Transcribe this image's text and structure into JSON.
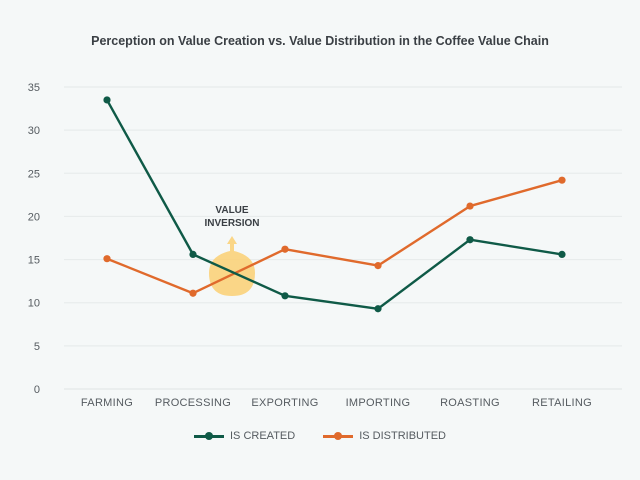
{
  "chart_data": {
    "type": "line",
    "title": "Perception on Value Creation vs. Value Distribution in the Coffee Value Chain",
    "xlabel": "",
    "ylabel": "",
    "categories": [
      "FARMING",
      "PROCESSING",
      "EXPORTING",
      "IMPORTING",
      "ROASTING",
      "RETAILING"
    ],
    "ylim": [
      0,
      35
    ],
    "yticks": [
      0,
      5,
      10,
      15,
      20,
      25,
      30,
      35
    ],
    "grid": true,
    "legend_position": "bottom",
    "series": [
      {
        "name": "IS CREATED",
        "color": "#0f5a47",
        "values": [
          33.5,
          15.6,
          10.8,
          9.3,
          17.3,
          15.6
        ]
      },
      {
        "name": "IS DISTRIBUTED",
        "color": "#e06a2c",
        "values": [
          15.1,
          11.1,
          16.2,
          14.3,
          21.2,
          24.2
        ]
      }
    ],
    "annotations": [
      {
        "text_line1": "VALUE",
        "text_line2": "INVERSION",
        "between": [
          "PROCESSING",
          "EXPORTING"
        ],
        "color": "#fbd27a"
      }
    ]
  }
}
